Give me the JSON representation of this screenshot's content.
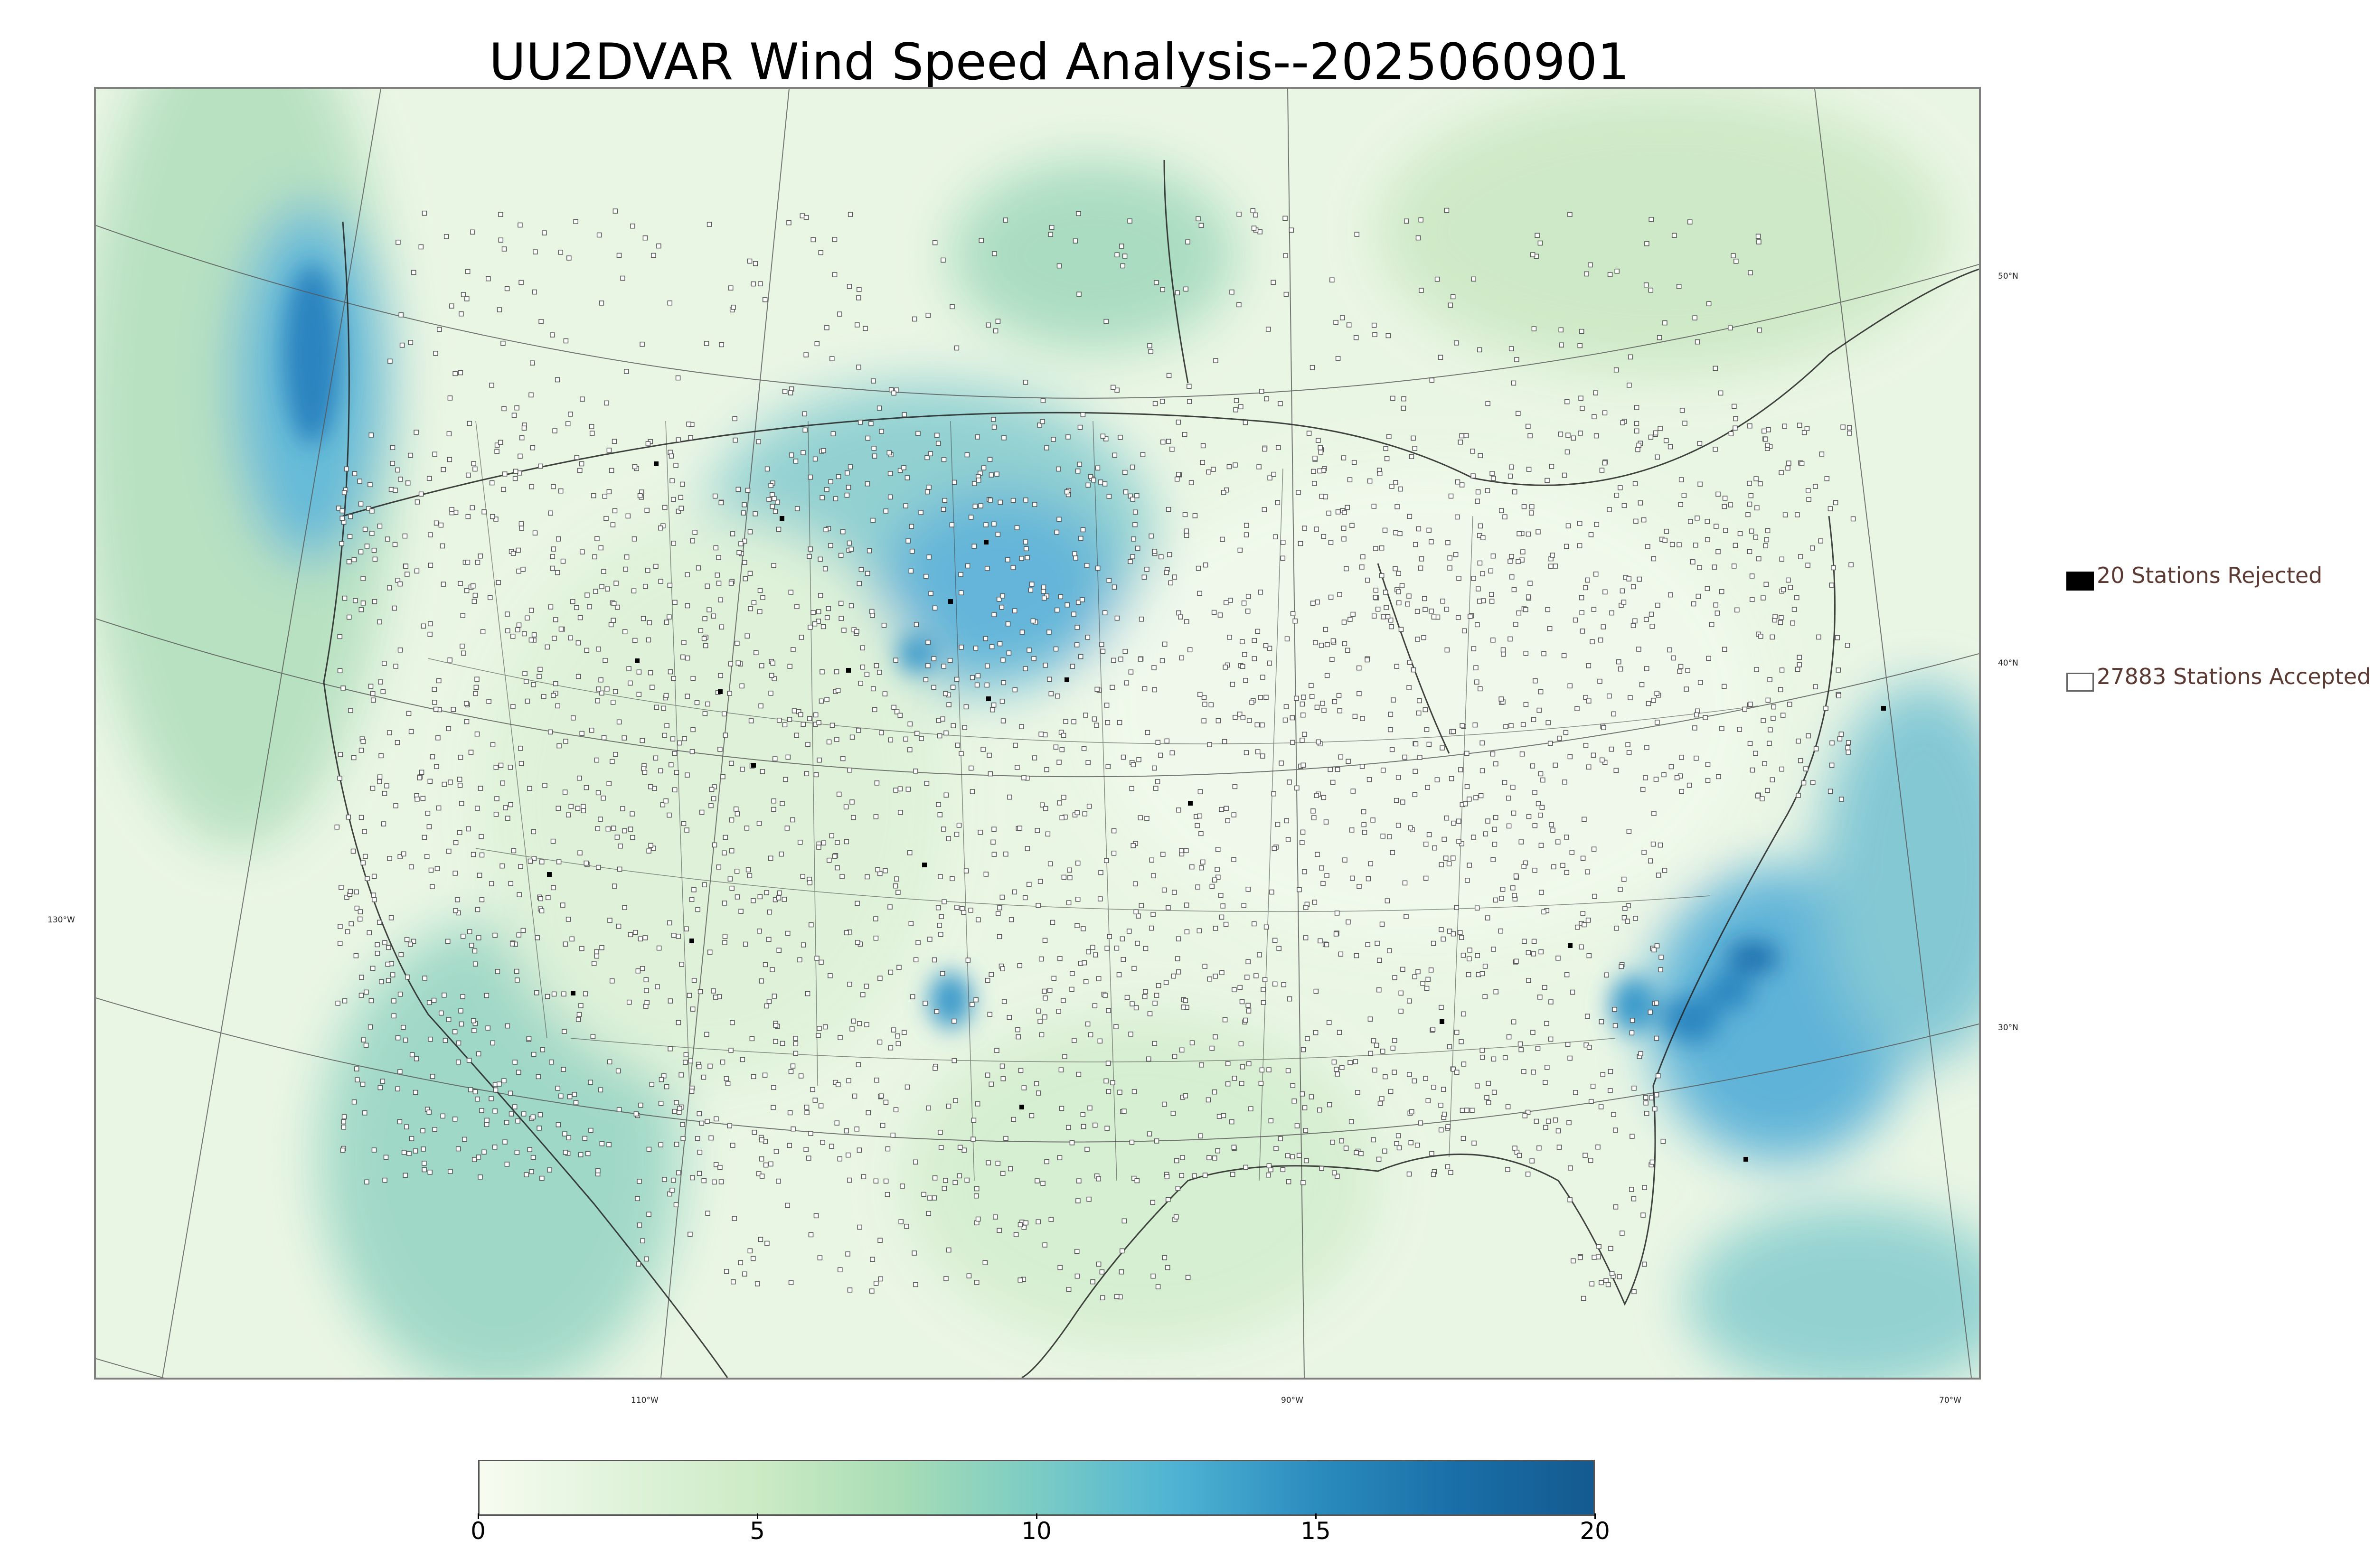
{
  "title": "UU2DVAR Wind Speed Analysis--2025060901",
  "map": {
    "lon_labels": [
      "130°W",
      "110°W",
      "90°W",
      "70°W"
    ],
    "lat_labels": [
      "50°N",
      "40°N",
      "30°N"
    ]
  },
  "legend": {
    "rejected": "20 Stations Rejected",
    "accepted": "27883 Stations Accepted"
  },
  "colorbar": {
    "ticks": [
      "0",
      "5",
      "10",
      "15",
      "20"
    ],
    "range": [
      0,
      20
    ],
    "colors": [
      "#f7fcf0",
      "#e0f3db",
      "#ccebc5",
      "#a8ddb5",
      "#7bccc4",
      "#4eb3d3",
      "#2b8cbe",
      "#1a6fa8",
      "#135a8f"
    ]
  },
  "colors": {
    "background_land": "#f3f9ee",
    "rejected_marker": "#000000",
    "accepted_marker": "#ffffff",
    "text_legend": "#5a3a32"
  }
}
